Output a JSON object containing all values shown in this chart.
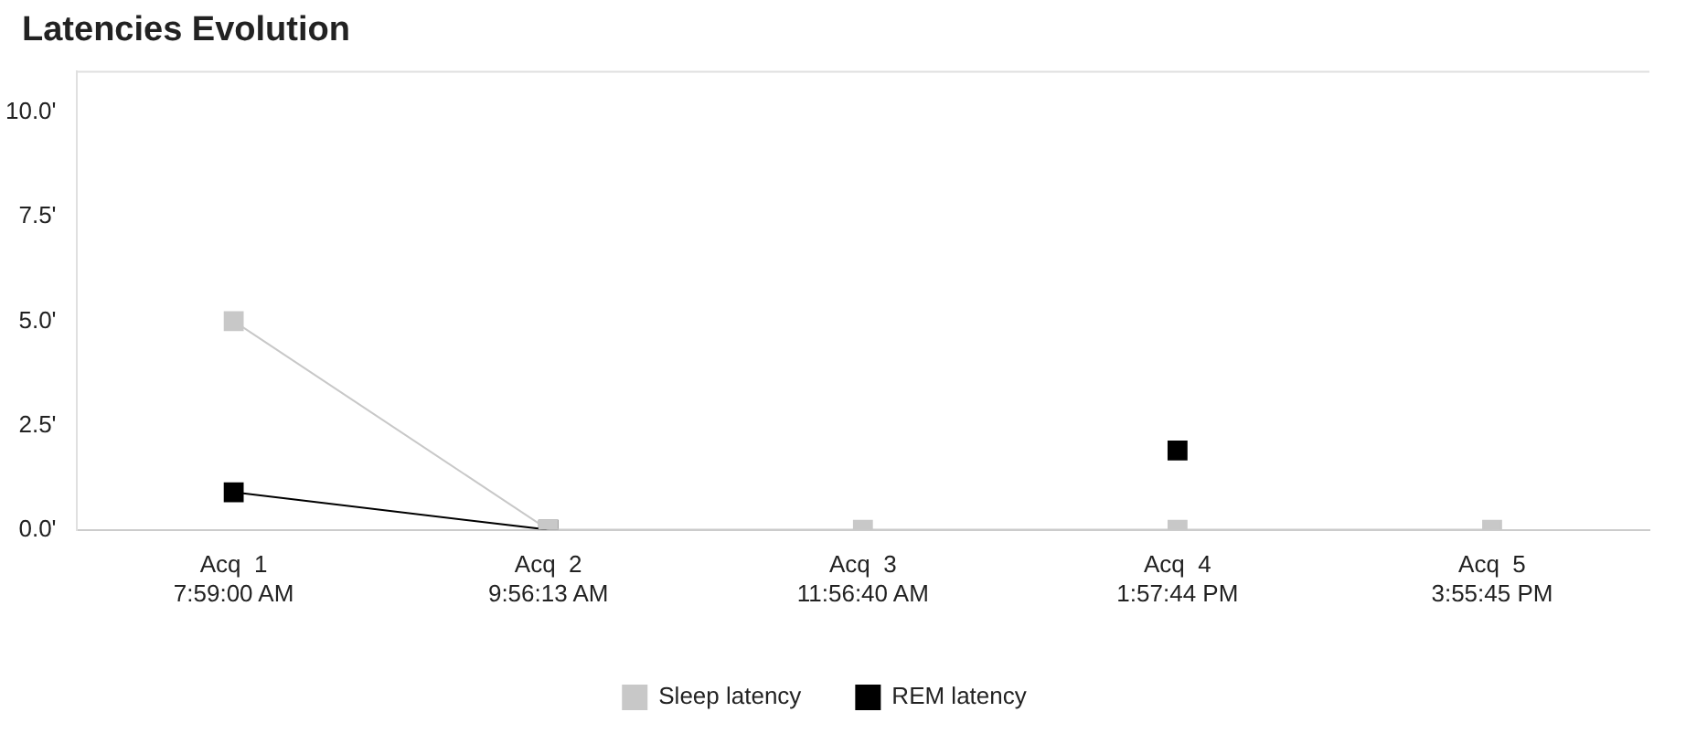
{
  "chart_data": {
    "type": "line",
    "title": "Latencies Evolution",
    "categories": [
      "Acq  1\n7:59:00 AM",
      "Acq  2\n9:56:13 AM",
      "Acq  3\n11:56:40 AM",
      "Acq  4\n1:57:44 PM",
      "Acq  5\n3:55:45 PM"
    ],
    "series": [
      {
        "name": "Sleep latency",
        "color": "#c8c8c8",
        "values": [
          5.0,
          0,
          0,
          0,
          0
        ]
      },
      {
        "name": "REM latency",
        "color": "#000000",
        "values": [
          0.9,
          0,
          null,
          1.9,
          null
        ]
      }
    ],
    "ylim": [
      0,
      11
    ],
    "yticks": [
      {
        "value": 0,
        "label": "0.0'"
      },
      {
        "value": 2.5,
        "label": "2.5'"
      },
      {
        "value": 5,
        "label": "5.0'"
      },
      {
        "value": 7.5,
        "label": "7.5'"
      },
      {
        "value": 10,
        "label": "10.0'"
      }
    ],
    "grid": false,
    "legend": "bottom",
    "marker": "square"
  }
}
